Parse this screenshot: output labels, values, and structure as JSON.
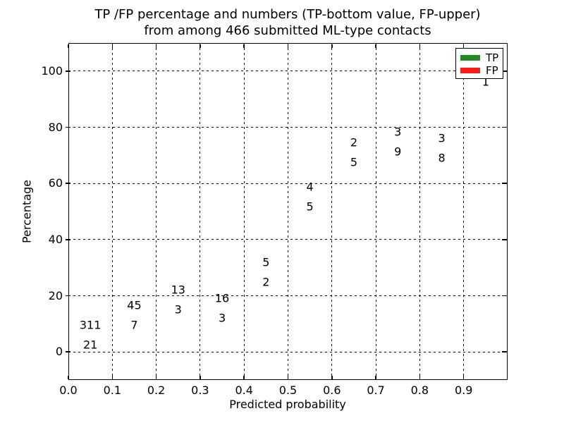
{
  "title": {
    "line1": "TP /FP percentage and numbers (TP-bottom value, FP-upper)",
    "line2": "from among 466 submitted ML-type contacts"
  },
  "chart_data": {
    "type": "bar",
    "stacked": true,
    "orientation": "vertical",
    "total_contacts": 466,
    "categories": [
      "0.0-0.1",
      "0.1-0.2",
      "0.2-0.3",
      "0.3-0.4",
      "0.4-0.5",
      "0.5-0.6",
      "0.6-0.7",
      "0.7-0.8",
      "0.8-0.9",
      "0.9-1.0"
    ],
    "bin_starts": [
      0.0,
      0.1,
      0.2,
      0.3,
      0.4,
      0.5,
      0.6,
      0.7,
      0.8,
      0.9
    ],
    "bin_width": 0.1,
    "series": [
      {
        "name": "TP",
        "color": "#228b22",
        "values": [
          21,
          7,
          3,
          3,
          2,
          5,
          5,
          9,
          8,
          1
        ]
      },
      {
        "name": "FP",
        "color": "#fc1c1c",
        "values": [
          311,
          45,
          13,
          16,
          5,
          4,
          2,
          3,
          3,
          0
        ]
      }
    ],
    "tp_percent": [
      6.33,
      13.46,
      18.75,
      15.79,
      28.57,
      55.56,
      71.43,
      75.0,
      72.73,
      100.0
    ],
    "bars_normalized_to": 100,
    "xlabel": "Predicted probability",
    "ylabel": "Percentage",
    "x_ticks": [
      "0.0",
      "0.1",
      "0.2",
      "0.3",
      "0.4",
      "0.5",
      "0.6",
      "0.7",
      "0.8",
      "0.9"
    ],
    "y_ticks": [
      "0",
      "20",
      "40",
      "60",
      "80",
      "100"
    ],
    "xlim": [
      0.0,
      1.0
    ],
    "ylim": [
      -10,
      110
    ],
    "grid": {
      "on": true,
      "style": "dotted",
      "color": "#000000",
      "axisbelow": false
    },
    "bar_edge_color": "#ffffff",
    "legend": {
      "position": "upper right",
      "entries": [
        {
          "label": "TP",
          "color": "#228b22"
        },
        {
          "label": "FP",
          "color": "#fc1c1c"
        }
      ]
    }
  }
}
